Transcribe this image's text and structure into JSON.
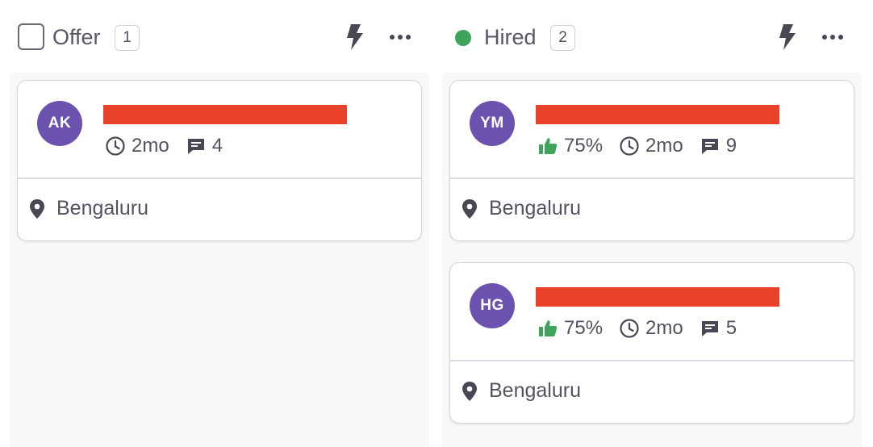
{
  "columns": [
    {
      "title": "Offer",
      "count": "1",
      "indicator": "checkbox",
      "cards": [
        {
          "initials": "AK",
          "avatar_color": "#6b52ae",
          "name_redacted": true,
          "score": null,
          "age": "2mo",
          "comments": "4",
          "location": "Bengaluru"
        }
      ]
    },
    {
      "title": "Hired",
      "count": "2",
      "indicator": "green-dot",
      "indicator_color": "#3fa45b",
      "cards": [
        {
          "initials": "YM",
          "avatar_color": "#6b52ae",
          "name_redacted": true,
          "score": "75%",
          "age": "2mo",
          "comments": "9",
          "location": "Bengaluru"
        },
        {
          "initials": "HG",
          "avatar_color": "#6b52ae",
          "name_redacted": true,
          "score": "75%",
          "age": "2mo",
          "comments": "5",
          "location": "Bengaluru"
        }
      ]
    }
  ],
  "icons": {
    "automation": "bolt-icon",
    "menu": "more-horizontal-icon",
    "score": "thumbs-up-icon",
    "age": "clock-icon",
    "comments": "comment-icon",
    "location": "map-pin-icon"
  },
  "colors": {
    "redaction": "#e8432a",
    "thumbs_up": "#3fa45b",
    "text": "#555260"
  }
}
